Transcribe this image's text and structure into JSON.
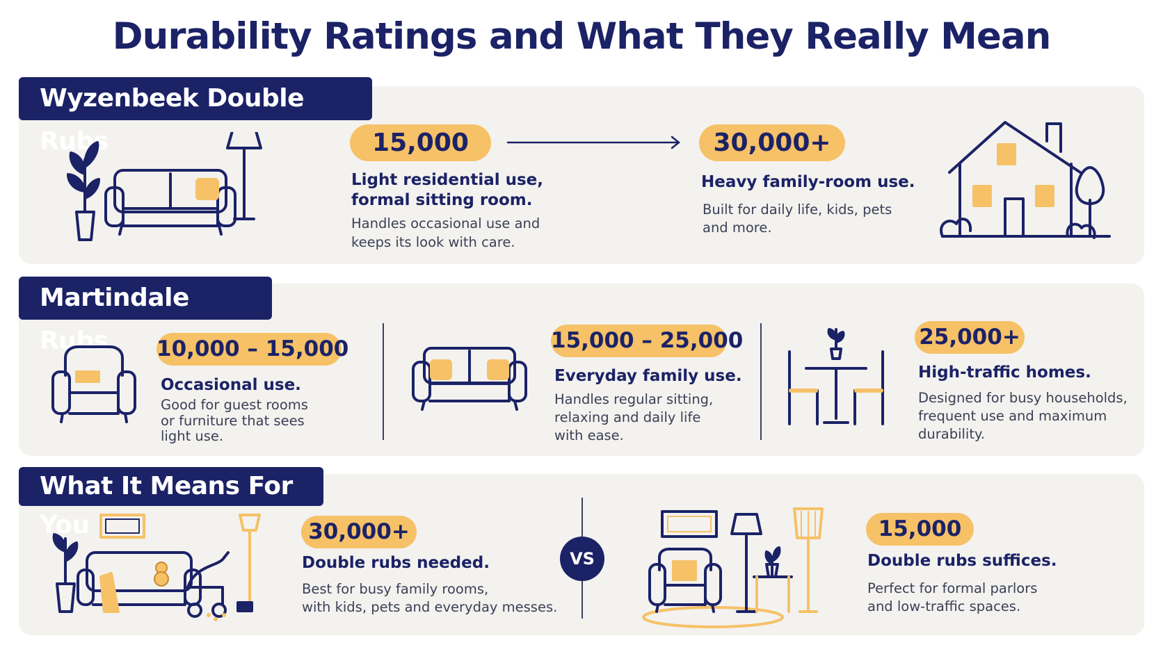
{
  "title": "Durability Ratings and What They Really Mean",
  "colors": {
    "navy": "#1b2266",
    "accent": "#f6c167",
    "panel": "#f3f2ef"
  },
  "wyzenbeek": {
    "header": "Wyzenbeek Double Rubs",
    "left": {
      "value": "15,000",
      "head_line1": "Light residential use,",
      "head_line2": "formal sitting room.",
      "body_line1": "Handles occasional use and",
      "body_line2": "keeps its look with care."
    },
    "right": {
      "value": "30,000+",
      "head": "Heavy family-room use.",
      "body_line1": "Built for daily life, kids, pets",
      "body_line2": "and more."
    },
    "icons": [
      "plant-icon",
      "sofa-icon",
      "floor-lamp-icon",
      "arrow-right-icon",
      "house-icon",
      "tree-icon"
    ]
  },
  "martindale": {
    "header": "Martindale Rubs",
    "items": [
      {
        "value": "10,000 – 15,000",
        "head": "Occasional use.",
        "body_line1": "Good for guest rooms",
        "body_line2": "or furniture that sees",
        "body_line3": "light use."
      },
      {
        "value": "15,000 – 25,000",
        "head": "Everyday family use.",
        "body_line1": "Handles regular sitting,",
        "body_line2": "relaxing and daily life",
        "body_line3": "with ease."
      },
      {
        "value": "25,000+",
        "head": "High-traffic homes.",
        "body_line1": "Designed for busy households,",
        "body_line2": "frequent use and maximum",
        "body_line3": "durability."
      }
    ],
    "icons": [
      "armchair-icon",
      "sofa-icon",
      "dining-set-icon"
    ]
  },
  "what_it_means": {
    "header": "What It Means For You",
    "left": {
      "value": "30,000+",
      "head": "Double rubs needed.",
      "body_line1": "Best for busy family rooms,",
      "body_line2": "with kids, pets and everyday messes."
    },
    "vs": "VS",
    "right": {
      "value": "15,000",
      "head": "Double rubs suffices.",
      "body_line1": "Perfect for formal parlors",
      "body_line2": "and low-traffic spaces."
    },
    "icons": [
      "family-room-icon",
      "formal-parlor-icon"
    ]
  }
}
